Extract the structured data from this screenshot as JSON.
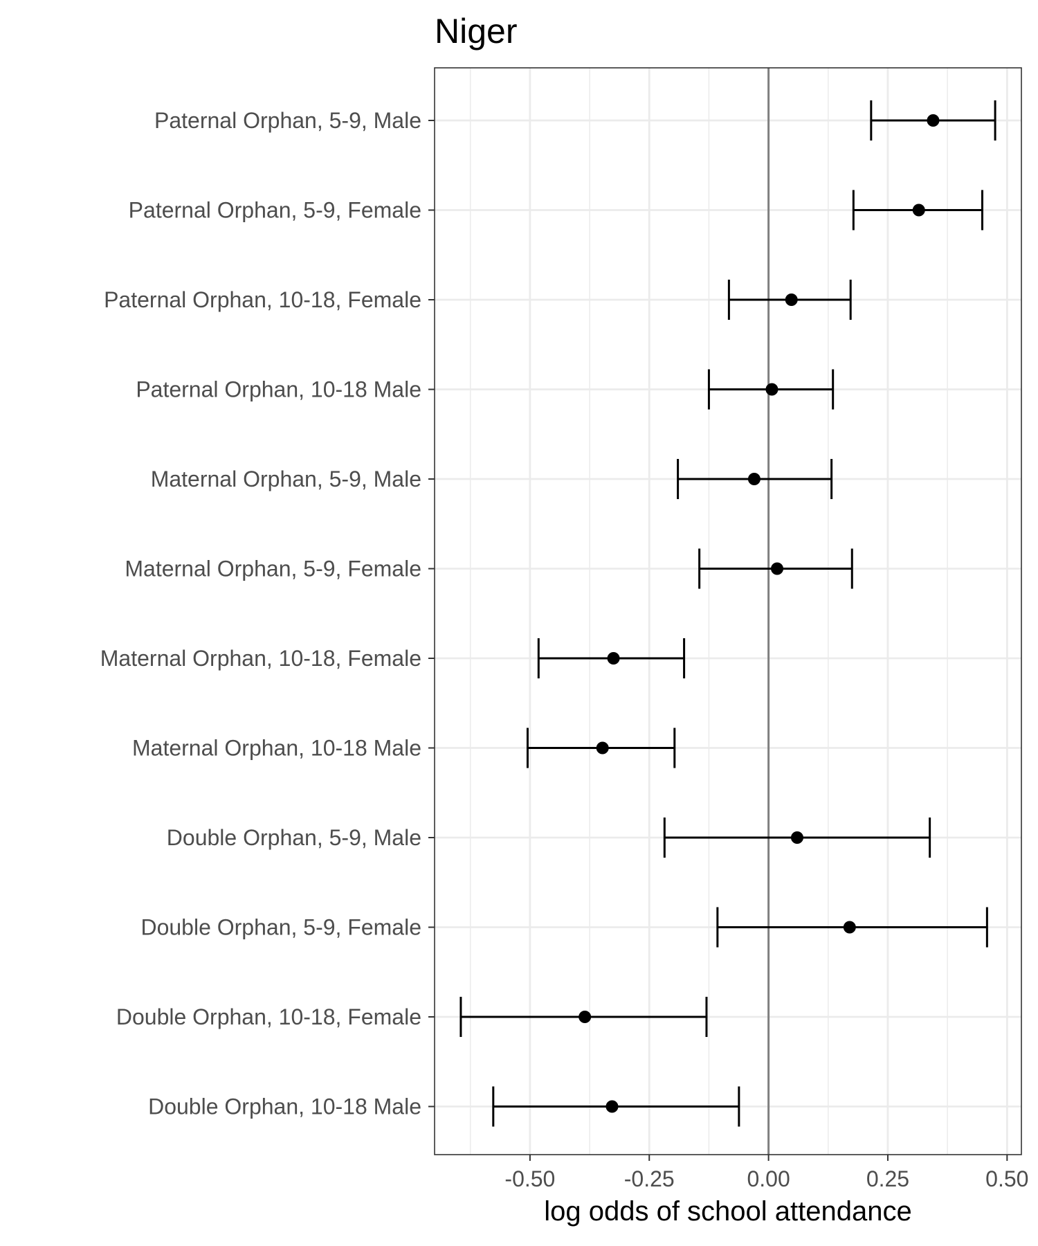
{
  "chart_data": {
    "type": "scatter",
    "title": "Niger",
    "xlabel": "log odds of school attendance",
    "ylabel": "",
    "xlim": [
      -0.7,
      0.53
    ],
    "xticks": [
      -0.5,
      -0.25,
      0.0,
      0.25,
      0.5
    ],
    "xtick_labels": [
      "-0.50",
      "-0.25",
      "0.00",
      "0.25",
      "0.50"
    ],
    "reference_line_x": 0,
    "grid": true,
    "categories": [
      "Paternal Orphan, 5-9, Male",
      "Paternal Orphan, 5-9, Female",
      "Paternal Orphan, 10-18, Female",
      "Paternal Orphan, 10-18 Male",
      "Maternal Orphan, 5-9, Male",
      "Maternal Orphan, 5-9, Female",
      "Maternal Orphan, 10-18, Female",
      "Maternal Orphan, 10-18 Male",
      "Double Orphan, 5-9, Male",
      "Double Orphan, 5-9, Female",
      "Double Orphan, 10-18, Female",
      "Double Orphan, 10-18 Male"
    ],
    "estimates": [
      0.345,
      0.315,
      0.048,
      0.007,
      -0.03,
      0.018,
      -0.325,
      -0.348,
      0.06,
      0.17,
      -0.385,
      -0.328
    ],
    "lower": [
      0.215,
      0.178,
      -0.083,
      -0.125,
      -0.19,
      -0.145,
      -0.482,
      -0.505,
      -0.218,
      -0.107,
      -0.645,
      -0.577
    ],
    "upper": [
      0.475,
      0.448,
      0.172,
      0.135,
      0.132,
      0.175,
      -0.177,
      -0.197,
      0.338,
      0.458,
      -0.13,
      -0.062
    ]
  }
}
